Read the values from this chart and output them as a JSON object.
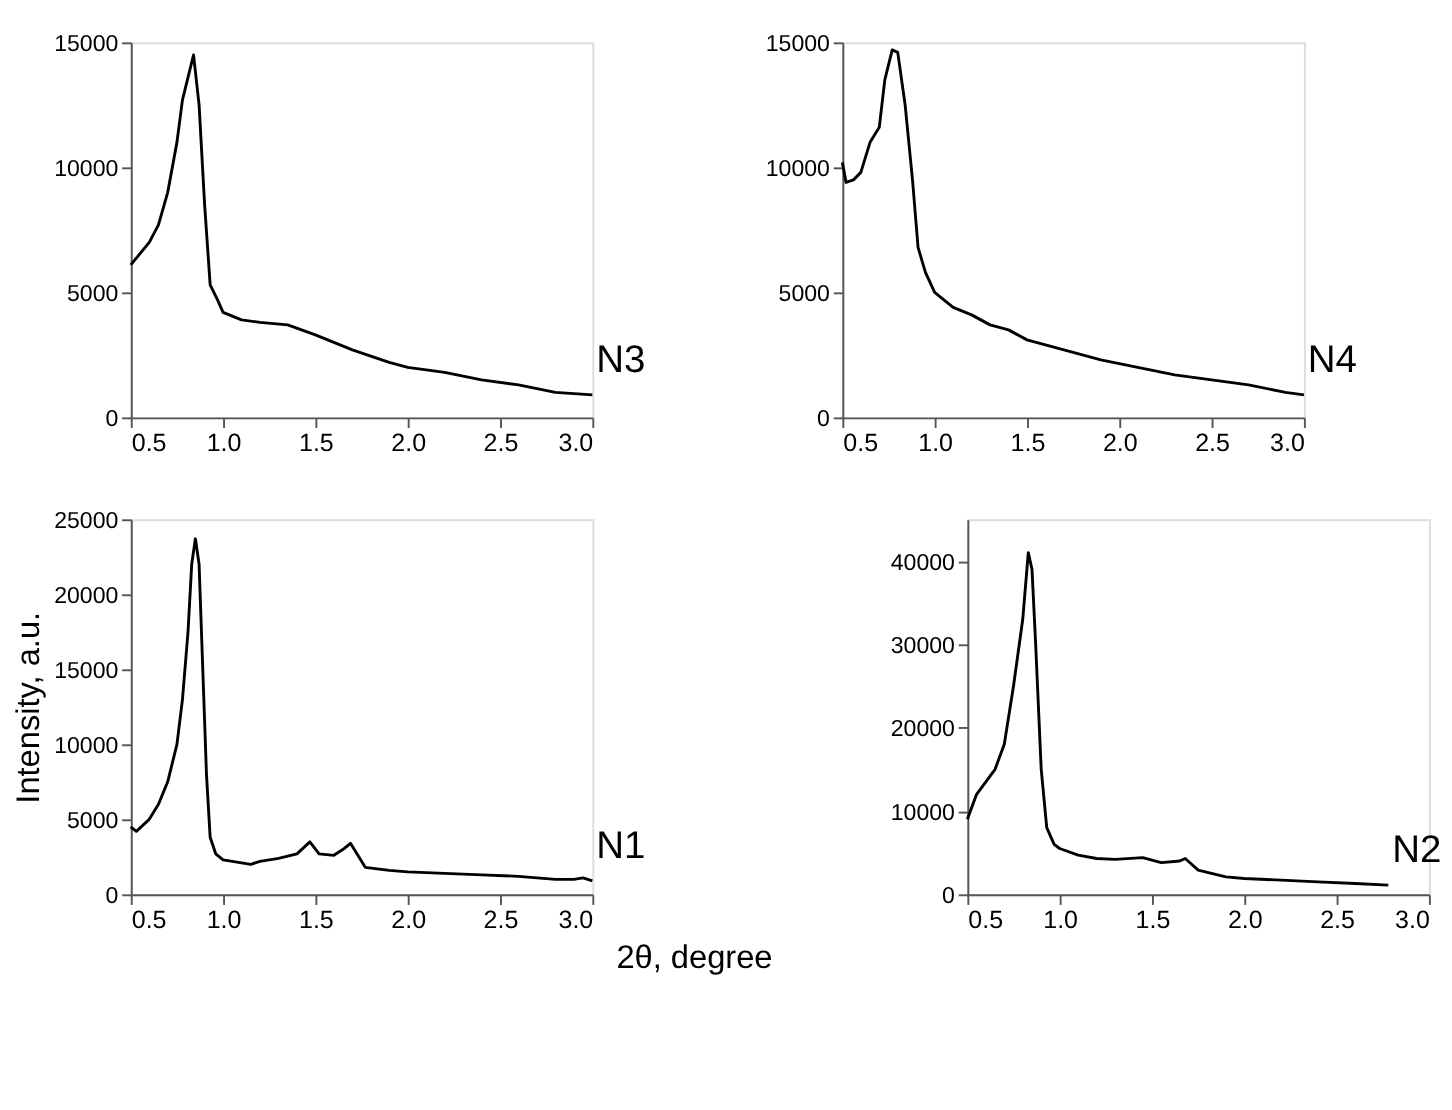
{
  "chart_data": [
    {
      "type": "line",
      "xlabel": "2θ, degree",
      "ylabel": "Intensity, a.u.",
      "xlim": [
        0.5,
        3.0
      ],
      "ylim": [
        0,
        25000
      ],
      "xticks": [
        0.5,
        {
          "value": 1,
          "label": "1.0"
        },
        1.5,
        {
          "value": 2,
          "label": "2.0"
        },
        2.5,
        {
          "value": 3,
          "label": "3.0"
        }
      ],
      "yticks": [
        0,
        5000,
        10000,
        15000,
        20000,
        25000
      ],
      "grid": false,
      "marker": "none",
      "line_style": "solid",
      "series": [
        {
          "name": "N1",
          "color": "#000000",
          "x": [
            0.5,
            0.53,
            0.6,
            0.65,
            0.7,
            0.75,
            0.78,
            0.81,
            0.83,
            0.85,
            0.87,
            0.89,
            0.91,
            0.93,
            0.96,
            1.0,
            1.1,
            1.15,
            1.2,
            1.3,
            1.4,
            1.47,
            1.52,
            1.6,
            1.65,
            1.69,
            1.72,
            1.77,
            1.9,
            2.0,
            2.2,
            2.4,
            2.6,
            2.8,
            2.9,
            2.95,
            3.0
          ],
          "values": [
            4500,
            4200,
            5000,
            6000,
            7500,
            10000,
            13000,
            17500,
            22000,
            23700,
            22000,
            15000,
            8000,
            3800,
            2700,
            2300,
            2100,
            2000,
            2200,
            2400,
            2700,
            3500,
            2700,
            2600,
            3000,
            3400,
            2800,
            1800,
            1600,
            1500,
            1400,
            1300,
            1200,
            1000,
            1000,
            1100,
            900
          ]
        }
      ]
    },
    {
      "type": "line",
      "xlim": [
        0.5,
        3.0
      ],
      "ylim": [
        0,
        45000
      ],
      "xticks": [
        0.5,
        {
          "value": 1,
          "label": "1.0"
        },
        1.5,
        {
          "value": 2,
          "label": "2.0"
        },
        2.5,
        {
          "value": 3,
          "label": "3.0"
        }
      ],
      "yticks": [
        0,
        10000,
        20000,
        30000,
        40000
      ],
      "grid": false,
      "marker": "none",
      "line_style": "solid",
      "series": [
        {
          "name": "N2",
          "color": "#000000",
          "x": [
            0.5,
            0.55,
            0.65,
            0.7,
            0.75,
            0.8,
            0.83,
            0.85,
            0.87,
            0.9,
            0.93,
            0.97,
            1.0,
            1.1,
            1.2,
            1.3,
            1.45,
            1.55,
            1.65,
            1.68,
            1.75,
            1.9,
            2.0,
            2.2,
            2.4,
            2.6,
            2.78
          ],
          "values": [
            9000,
            12000,
            15000,
            18000,
            25000,
            33000,
            41000,
            39000,
            30000,
            15000,
            8000,
            6000,
            5500,
            4700,
            4300,
            4200,
            4400,
            3800,
            4000,
            4300,
            2900,
            2100,
            1900,
            1700,
            1500,
            1300,
            1100
          ]
        }
      ]
    },
    {
      "type": "line",
      "xlim": [
        0.5,
        3.0
      ],
      "ylim": [
        0,
        15000
      ],
      "xticks": [
        0.5,
        {
          "value": 1,
          "label": "1.0"
        },
        1.5,
        {
          "value": 2,
          "label": "2.0"
        },
        2.5,
        {
          "value": 3,
          "label": "3.0"
        }
      ],
      "yticks": [
        0,
        5000,
        10000,
        15000
      ],
      "grid": false,
      "marker": "none",
      "line_style": "solid",
      "series": [
        {
          "name": "N3",
          "color": "#000000",
          "x": [
            0.5,
            0.6,
            0.65,
            0.7,
            0.75,
            0.78,
            0.84,
            0.87,
            0.9,
            0.93,
            0.97,
            1.0,
            1.1,
            1.2,
            1.35,
            1.5,
            1.7,
            1.9,
            2.0,
            2.2,
            2.4,
            2.6,
            2.8,
            3.0
          ],
          "values": [
            6100,
            7000,
            7700,
            9000,
            11000,
            12700,
            14500,
            12500,
            8500,
            5300,
            4700,
            4200,
            3900,
            3800,
            3700,
            3300,
            2700,
            2200,
            2000,
            1800,
            1500,
            1300,
            1000,
            900
          ]
        }
      ]
    },
    {
      "type": "line",
      "xlim": [
        0.5,
        3.0
      ],
      "ylim": [
        0,
        15000
      ],
      "xticks": [
        0.5,
        {
          "value": 1,
          "label": "1.0"
        },
        1.5,
        {
          "value": 2,
          "label": "2.0"
        },
        2.5,
        {
          "value": 3,
          "label": "3.0"
        }
      ],
      "yticks": [
        0,
        5000,
        10000,
        15000
      ],
      "grid": false,
      "marker": "none",
      "line_style": "solid",
      "series": [
        {
          "name": "N4",
          "color": "#000000",
          "x": [
            0.5,
            0.52,
            0.56,
            0.6,
            0.65,
            0.7,
            0.73,
            0.77,
            0.8,
            0.84,
            0.88,
            0.91,
            0.95,
            1.0,
            1.1,
            1.2,
            1.3,
            1.4,
            1.5,
            1.7,
            1.9,
            2.1,
            2.3,
            2.5,
            2.7,
            2.9,
            3.0
          ],
          "values": [
            10200,
            9400,
            9500,
            9800,
            11000,
            11600,
            13500,
            14700,
            14600,
            12500,
            9500,
            6800,
            5800,
            5000,
            4400,
            4100,
            3700,
            3500,
            3100,
            2700,
            2300,
            2000,
            1700,
            1500,
            1300,
            1000,
            900
          ]
        }
      ]
    }
  ]
}
